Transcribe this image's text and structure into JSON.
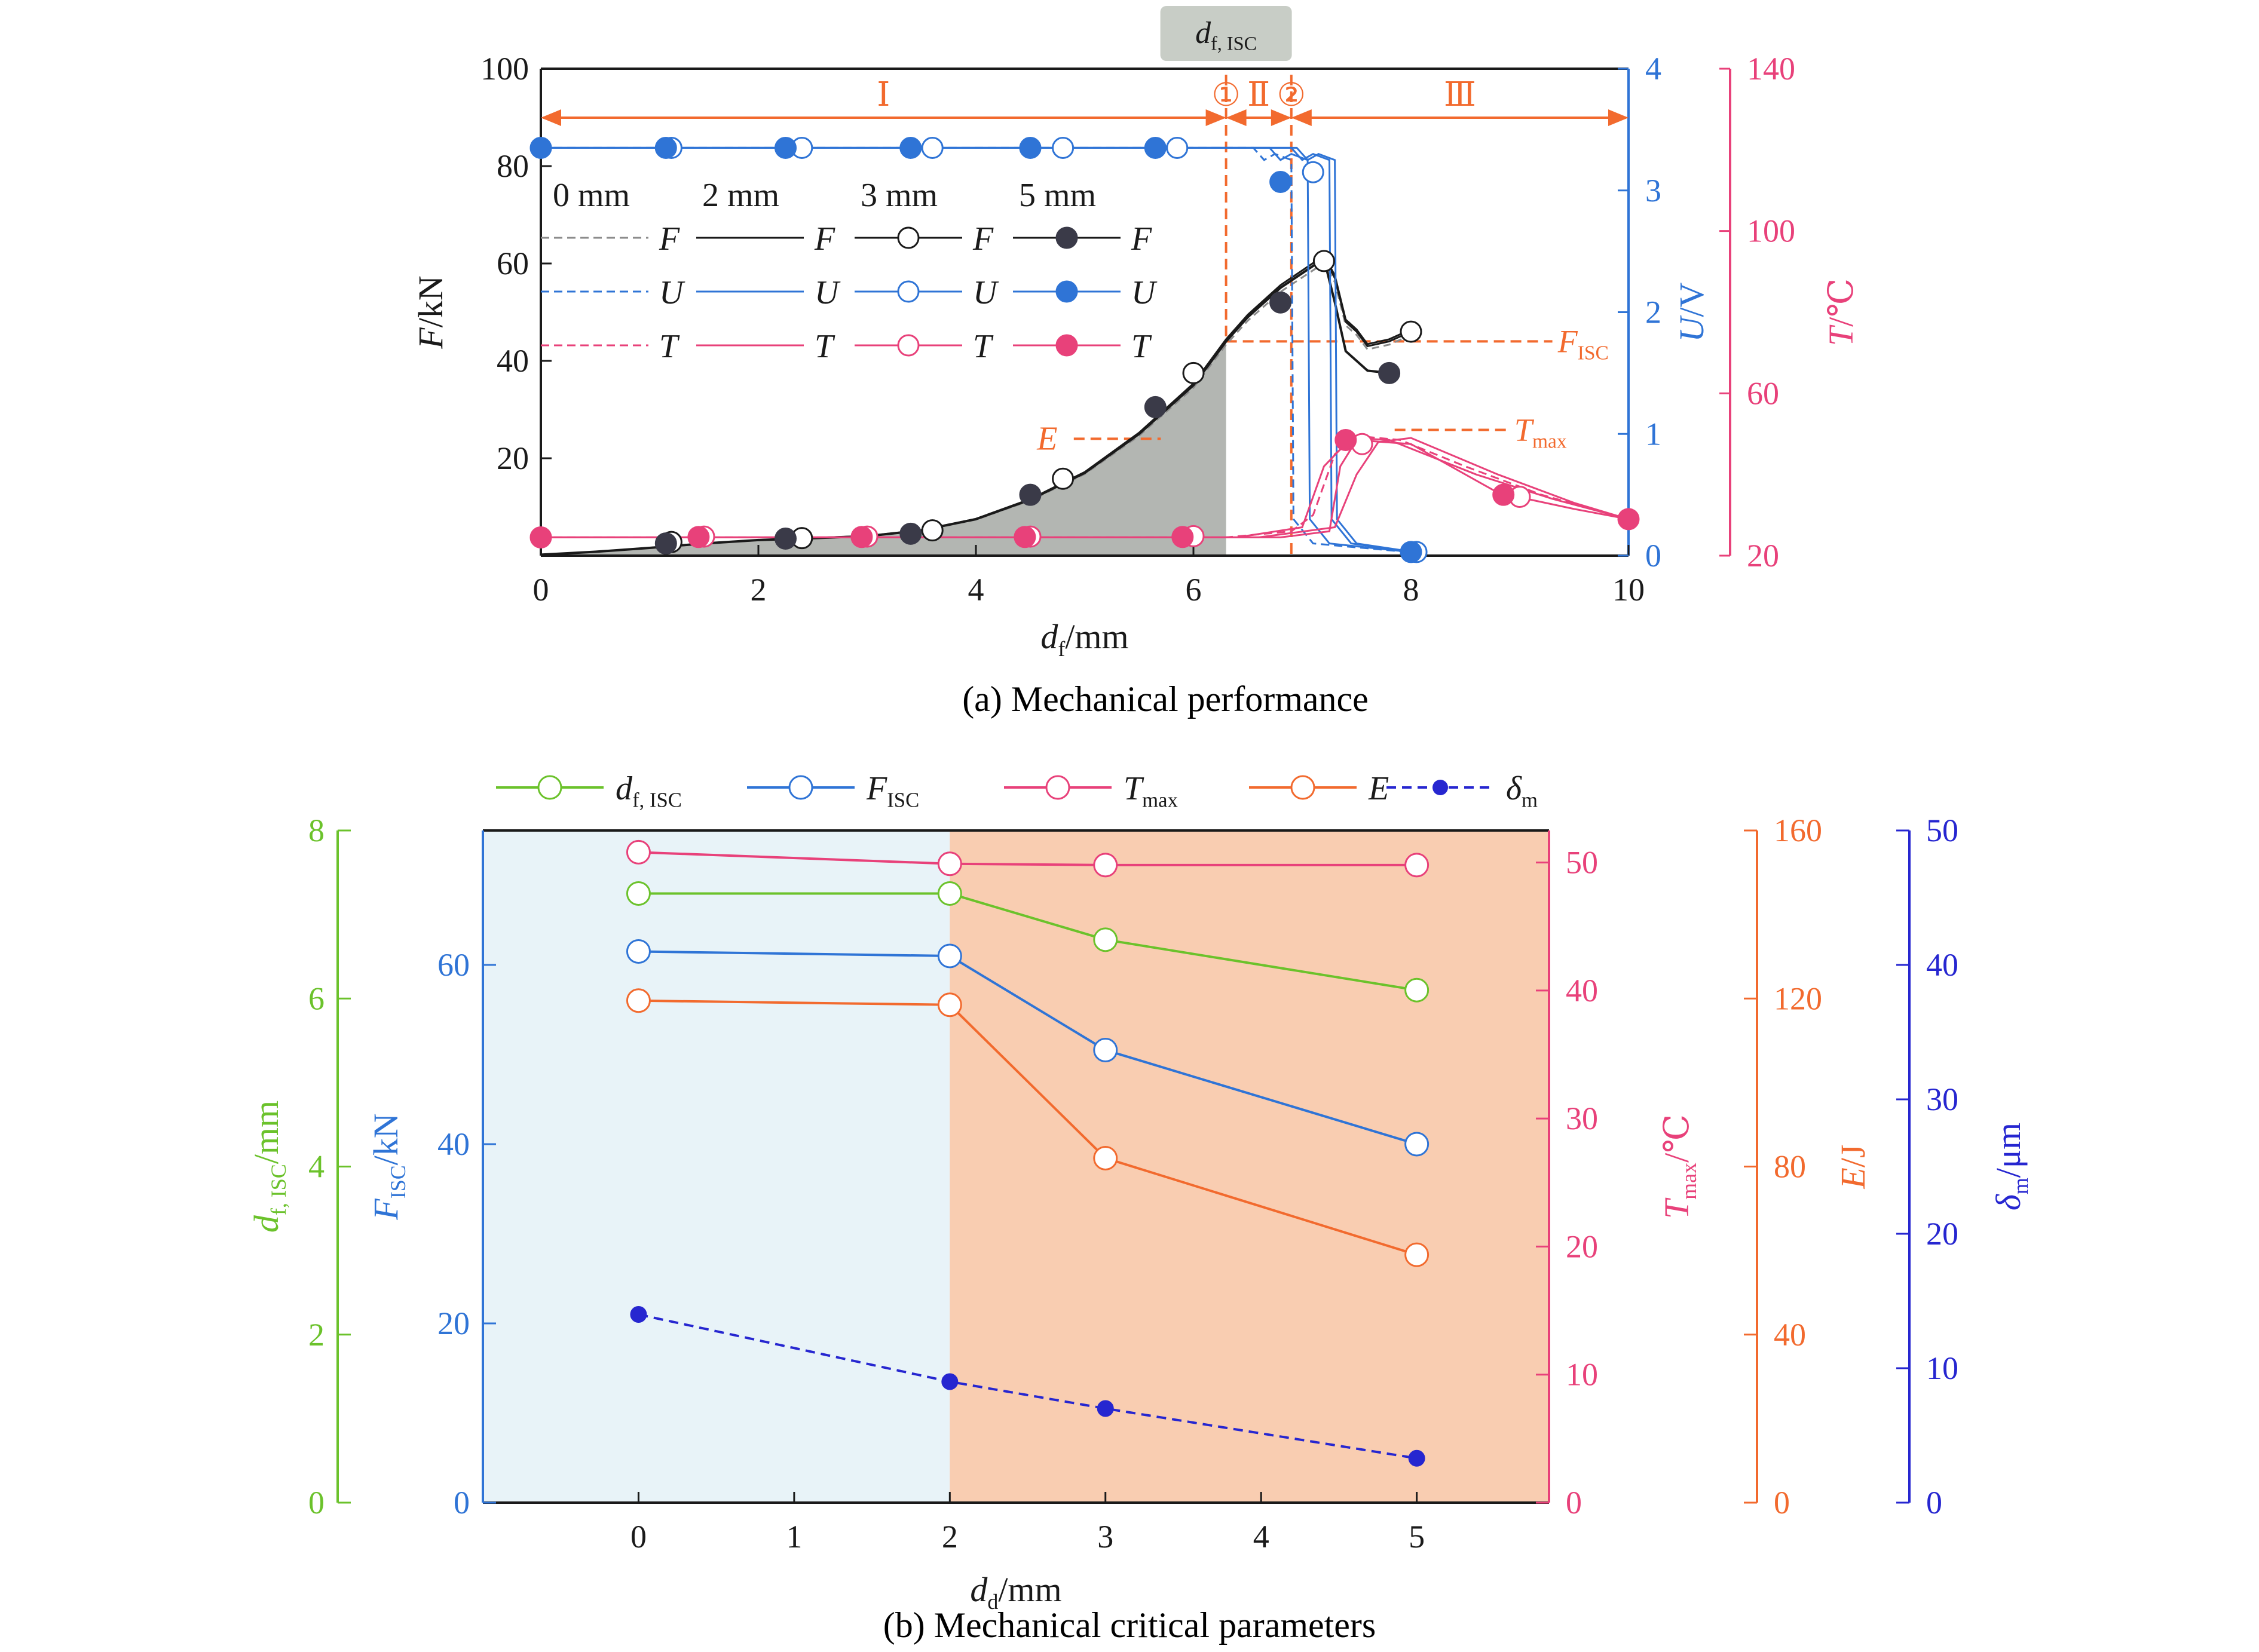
{
  "figure": {
    "caption_a": "(a) Mechanical performance",
    "caption_b": "(b) Mechanical critical parameters"
  },
  "colors": {
    "black": "#1a1a1a",
    "dark_marker": "#3a3a48",
    "gray_dash": "#8c8c8c",
    "blue": "#2f74d6",
    "pink": "#e8417a",
    "orange": "#f26a2e",
    "green": "#6bc22b",
    "navy": "#2626d0",
    "shade_gray": "#b3b6b2",
    "region_light_blue": "#e8f3f8",
    "region_peach": "#f9cdb1",
    "tag_bg": "#c8cdc6"
  },
  "chart_data": [
    {
      "id": "a",
      "type": "line",
      "title": "",
      "xlabel": {
        "main": "d",
        "sub": "f",
        "rest": "/mm"
      },
      "ylabel_left": {
        "main": "F",
        "rest": "/kN"
      },
      "ylabel_right1": {
        "main": "U",
        "rest": "/V"
      },
      "ylabel_right2": {
        "main": "T",
        "rest": "/℃"
      },
      "xlim": [
        0,
        10
      ],
      "ylim_left": [
        0,
        100
      ],
      "ylim_right1": [
        0,
        4
      ],
      "ylim_right2": [
        20,
        140
      ],
      "x_ticks": [
        "0",
        "2",
        "4",
        "6",
        "8",
        "10"
      ],
      "y_left_ticks": [
        "20",
        "40",
        "60",
        "80",
        "100"
      ],
      "y_right1_ticks": [
        "0",
        "1",
        "2",
        "3",
        "4"
      ],
      "y_right2_ticks": [
        "20",
        "60",
        "100",
        "140"
      ],
      "top_tag": {
        "main": "d",
        "sub": "f, ISC"
      },
      "regions": [
        {
          "label": "Ⅰ",
          "from": 0,
          "to": 6.3
        },
        {
          "label": "Ⅱ",
          "from": 6.3,
          "to": 6.9
        },
        {
          "label": "Ⅲ",
          "from": 6.9,
          "to": 10
        }
      ],
      "region_markers": [
        "①",
        "②"
      ],
      "annotations": {
        "E": "E",
        "F_ISC": {
          "main": "F",
          "sub": "ISC"
        },
        "T_max": {
          "main": "T",
          "sub": "max"
        }
      },
      "legend": {
        "columns": [
          "0 mm",
          "2 mm",
          "3 mm",
          "5 mm"
        ],
        "rows": [
          "F",
          "U",
          "T"
        ]
      },
      "shaded_area_to_x": 6.3,
      "series": {
        "F": {
          "curve": [
            [
              0,
              0.2
            ],
            [
              0.5,
              0.8
            ],
            [
              1,
              1.6
            ],
            [
              1.5,
              2.5
            ],
            [
              2,
              3.2
            ],
            [
              2.5,
              3.6
            ],
            [
              3,
              4.0
            ],
            [
              3.5,
              5.2
            ],
            [
              4,
              7.5
            ],
            [
              4.5,
              11.5
            ],
            [
              5,
              17
            ],
            [
              5.5,
              25
            ],
            [
              6,
              35
            ],
            [
              6.3,
              44
            ],
            [
              6.5,
              49
            ],
            [
              6.8,
              55
            ],
            [
              7.0,
              58
            ],
            [
              7.2,
              61
            ],
            [
              7.3,
              57
            ],
            [
              7.4,
              48
            ],
            [
              7.5,
              46
            ],
            [
              7.6,
              43
            ],
            [
              7.8,
              44
            ],
            [
              8.0,
              46
            ]
          ],
          "curve_5mm_tail": [
            [
              7.2,
              61
            ],
            [
              7.3,
              52
            ],
            [
              7.4,
              42
            ],
            [
              7.6,
              38
            ],
            [
              7.8,
              37.5
            ]
          ],
          "markers_5mm": [
            [
              1.15,
              2.5
            ],
            [
              2.25,
              3.5
            ],
            [
              3.4,
              4.5
            ],
            [
              4.5,
              12.5
            ],
            [
              5.65,
              30.5
            ],
            [
              6.8,
              52
            ],
            [
              7.8,
              37.5
            ]
          ],
          "markers_3mm": [
            [
              1.2,
              2.8
            ],
            [
              2.4,
              3.6
            ],
            [
              3.6,
              5.2
            ],
            [
              4.8,
              15.8
            ],
            [
              6.0,
              37.5
            ],
            [
              7.2,
              60.5
            ],
            [
              8.0,
              46
            ]
          ]
        },
        "U": {
          "plateau": 3.35,
          "drops": [
            {
              "name": "0 mm",
              "x": 6.9
            },
            {
              "name": "2 mm",
              "x": 7.05
            },
            {
              "name": "3 mm",
              "x": 7.25
            },
            {
              "name": "5 mm",
              "x": 7.3
            }
          ],
          "markers_5mm": [
            [
              0,
              3.35
            ],
            [
              1.15,
              3.35
            ],
            [
              2.25,
              3.35
            ],
            [
              3.4,
              3.35
            ],
            [
              4.5,
              3.35
            ],
            [
              5.65,
              3.35
            ],
            [
              6.8,
              3.07
            ],
            [
              8.0,
              0.03
            ]
          ],
          "markers_3mm": [
            [
              1.2,
              3.35
            ],
            [
              2.4,
              3.35
            ],
            [
              3.6,
              3.35
            ],
            [
              4.8,
              3.35
            ],
            [
              5.85,
              3.35
            ],
            [
              7.1,
              3.15
            ],
            [
              8.05,
              0.03
            ]
          ]
        },
        "T": {
          "baseline": 24.5,
          "peak": 49.5,
          "end": 29,
          "markers_5mm": [
            [
              0,
              24.5
            ],
            [
              1.45,
              24.6
            ],
            [
              2.95,
              24.6
            ],
            [
              4.45,
              24.6
            ],
            [
              5.9,
              24.6
            ],
            [
              7.4,
              48.5
            ],
            [
              8.85,
              35
            ],
            [
              10,
              29
            ]
          ],
          "markers_3mm": [
            [
              1.5,
              24.7
            ],
            [
              3.0,
              24.7
            ],
            [
              4.5,
              24.7
            ],
            [
              6.0,
              24.8
            ],
            [
              7.55,
              47.5
            ],
            [
              9.0,
              34.5
            ]
          ]
        }
      }
    },
    {
      "id": "b",
      "type": "line",
      "title": "",
      "xlabel": {
        "main": "d",
        "sub": "d",
        "rest": "/mm"
      },
      "x_ticks": [
        "0",
        "1",
        "2",
        "3",
        "4",
        "5"
      ],
      "xlim": [
        -1,
        5.85
      ],
      "shade_boundary_x": 2,
      "categories": [
        0,
        2,
        3,
        5
      ],
      "axes": {
        "d_f_ISC": {
          "label": {
            "main": "d",
            "sub": "f, ISC",
            "rest": "/mm"
          },
          "lim": [
            0,
            8
          ],
          "ticks": [
            "0",
            "2",
            "4",
            "6",
            "8"
          ]
        },
        "F_ISC": {
          "label": {
            "main": "F",
            "sub": "ISC",
            "rest": "/kN"
          },
          "lim": [
            0,
            75
          ],
          "ticks": [
            "0",
            "20",
            "40",
            "60"
          ]
        },
        "T_max": {
          "label": {
            "main": "T",
            "sub": "max",
            "rest": "/℃"
          },
          "lim": [
            0,
            52.5
          ],
          "ticks": [
            "0",
            "10",
            "20",
            "30",
            "40",
            "50"
          ]
        },
        "E": {
          "label": {
            "main": "E",
            "rest": "/J"
          },
          "lim": [
            0,
            160
          ],
          "ticks": [
            "0",
            "40",
            "80",
            "120",
            "160"
          ]
        },
        "delta_m": {
          "label": {
            "main": "δ",
            "sub": "m",
            "rest": "/μm"
          },
          "lim": [
            0,
            50
          ],
          "ticks": [
            "0",
            "10",
            "20",
            "30",
            "40",
            "50"
          ]
        }
      },
      "legend": [
        {
          "main": "d",
          "sub": "f, ISC"
        },
        {
          "main": "F",
          "sub": "ISC"
        },
        {
          "main": "T",
          "sub": "max"
        },
        {
          "main": "E",
          "sub": ""
        },
        {
          "main": "δ",
          "sub": "m"
        }
      ],
      "series": [
        {
          "name": "d_f,ISC",
          "axis": "d_f_ISC",
          "values": [
            7.25,
            7.25,
            6.7,
            6.1
          ]
        },
        {
          "name": "F_ISC",
          "axis": "F_ISC",
          "values": [
            61.5,
            61,
            50.5,
            40
          ]
        },
        {
          "name": "T_max",
          "axis": "T_max",
          "values": [
            50.8,
            49.9,
            49.8,
            49.8
          ]
        },
        {
          "name": "E",
          "axis": "E",
          "values": [
            119.5,
            118.5,
            82,
            59
          ]
        },
        {
          "name": "delta_m",
          "axis": "delta_m",
          "values": [
            14,
            9,
            7,
            3.3
          ]
        }
      ]
    }
  ]
}
